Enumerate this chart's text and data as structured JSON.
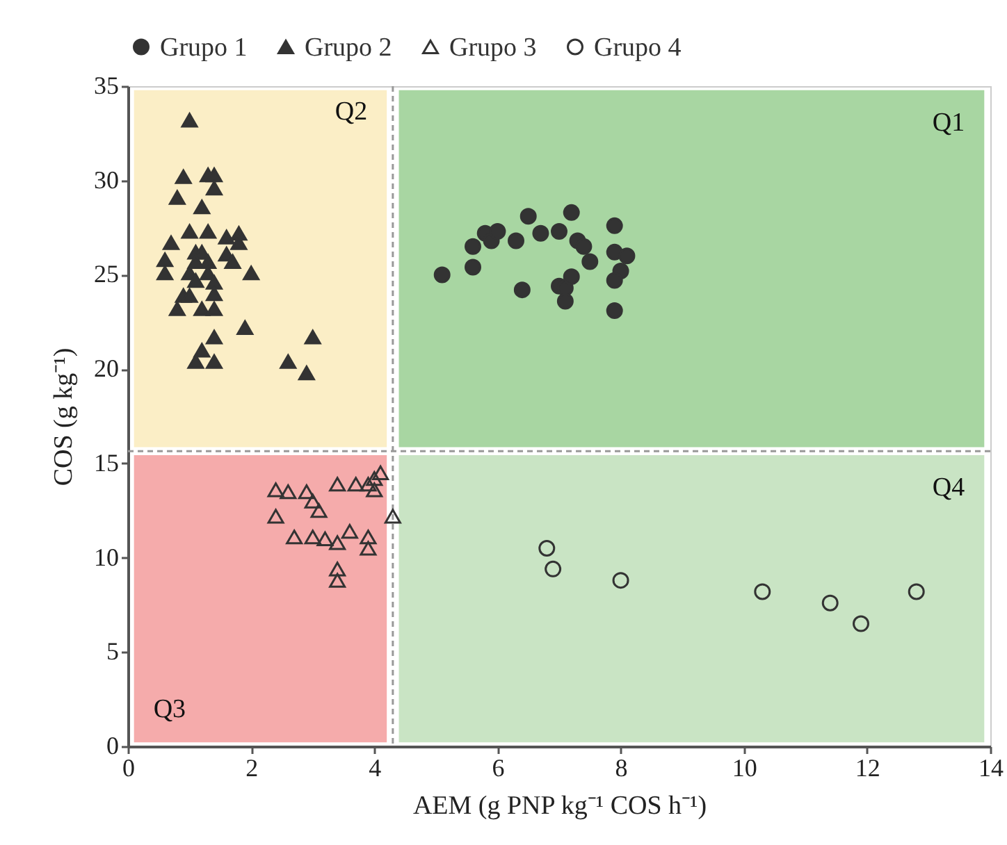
{
  "chart_data": {
    "type": "scatter",
    "xlabel": "AEM (g PNP kg⁻¹ COS h⁻¹)",
    "ylabel": "COS (g kg⁻¹)",
    "xlim": [
      0,
      14
    ],
    "ylim": [
      0,
      35
    ],
    "xticks": [
      0,
      2,
      4,
      6,
      8,
      10,
      12,
      14
    ],
    "yticks": [
      0,
      5,
      10,
      15,
      20,
      25,
      30,
      35
    ],
    "legend": "top",
    "grid": false,
    "series": [
      {
        "name": "Grupo 1",
        "color": "#333333",
        "marker": "circle",
        "x": [
          5.1,
          5.6,
          5.6,
          5.8,
          5.9,
          6.0,
          6.3,
          6.5,
          6.7,
          6.4,
          7.0,
          7.2,
          7.3,
          7.4,
          7.0,
          7.1,
          7.2,
          7.1,
          7.5,
          7.9,
          7.9,
          8.1,
          8.0,
          7.9,
          7.9
        ],
        "values": [
          25.0,
          25.4,
          26.5,
          27.2,
          26.8,
          27.3,
          26.8,
          28.1,
          27.2,
          24.2,
          27.3,
          28.3,
          26.8,
          26.5,
          24.4,
          24.3,
          24.9,
          23.6,
          25.7,
          27.6,
          26.2,
          26.0,
          25.2,
          24.7,
          23.1
        ]
      },
      {
        "name": "Grupo 2",
        "color": "#333333",
        "marker": "triangle",
        "x": [
          1.0,
          0.9,
          1.3,
          1.4,
          0.8,
          1.4,
          1.2,
          1.0,
          1.3,
          0.7,
          1.6,
          1.8,
          1.8,
          1.1,
          1.2,
          1.6,
          0.6,
          1.1,
          1.3,
          1.7,
          0.6,
          1.0,
          1.3,
          2.0,
          1.1,
          1.4,
          1.4,
          0.9,
          1.0,
          0.8,
          1.2,
          1.4,
          1.9,
          1.4,
          3.0,
          1.2,
          1.1,
          1.4,
          2.6,
          2.9
        ],
        "values": [
          33.2,
          30.2,
          30.3,
          30.3,
          29.1,
          29.6,
          28.6,
          27.3,
          27.3,
          26.7,
          27.0,
          27.2,
          26.7,
          26.2,
          26.2,
          26.1,
          25.8,
          25.7,
          25.7,
          25.7,
          25.1,
          25.1,
          25.1,
          25.1,
          24.7,
          24.6,
          24.0,
          23.9,
          23.9,
          23.2,
          23.2,
          23.2,
          22.2,
          21.7,
          21.7,
          21.0,
          20.4,
          20.4,
          20.4,
          19.8
        ]
      },
      {
        "name": "Grupo 3",
        "color": "#333333",
        "marker": "triangle",
        "x": [
          2.4,
          2.6,
          2.9,
          3.0,
          3.1,
          2.4,
          3.4,
          3.7,
          3.9,
          4.0,
          4.1,
          4.0,
          2.7,
          3.0,
          3.2,
          3.4,
          3.6,
          3.9,
          3.9,
          3.4,
          3.4,
          4.3
        ],
        "values": [
          13.6,
          13.5,
          13.5,
          13.0,
          12.5,
          12.2,
          13.9,
          13.9,
          13.9,
          14.2,
          14.5,
          13.6,
          11.1,
          11.1,
          11.0,
          10.8,
          11.4,
          11.1,
          10.5,
          9.4,
          8.8,
          12.2
        ]
      },
      {
        "name": "Grupo 4",
        "color": "#333333",
        "marker": "circle",
        "x": [
          6.8,
          6.9,
          8.0,
          10.3,
          11.4,
          11.9,
          12.8
        ],
        "values": [
          10.5,
          9.4,
          8.8,
          8.2,
          7.6,
          6.5,
          8.2
        ]
      }
    ],
    "ref_lines": [
      {
        "axis": "x",
        "value": 4.3,
        "color": "#999999",
        "line_style": "dashed"
      },
      {
        "axis": "y",
        "value": 15.65,
        "color": "#999999",
        "line_style": "dashed"
      }
    ],
    "annotations": [
      "Q1",
      "Q2",
      "Q3",
      "Q4"
    ]
  }
}
